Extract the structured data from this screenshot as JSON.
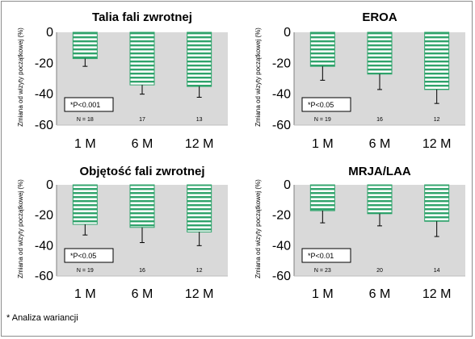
{
  "colors": {
    "plot_bg": "#d9d9d9",
    "bar_stripe": "#2fa36b",
    "bar_fill": "#ffffff",
    "error_bar": "#000000"
  },
  "footnote": "* Analiza wariancji",
  "chart_data": [
    {
      "type": "bar",
      "title": "Talia fali zwrotnej",
      "ylabel": "Zmiana od wizyty początkowej (%)",
      "categories": [
        "1 M",
        "6 M",
        "12 M"
      ],
      "values": [
        -17,
        -34,
        -35
      ],
      "errors": [
        5,
        6,
        7
      ],
      "n_labels": [
        "N = 18",
        "17",
        "13"
      ],
      "ylim": [
        -60,
        0
      ],
      "yticks": [
        0,
        -20,
        -40,
        -60
      ],
      "significance": "*P<0.001",
      "grid": false,
      "legend": "none"
    },
    {
      "type": "bar",
      "title": "EROA",
      "ylabel": "Zmiana od wizyty początkowej (%)",
      "categories": [
        "1 M",
        "6 M",
        "12 M"
      ],
      "values": [
        -22,
        -27,
        -37
      ],
      "errors": [
        9,
        10,
        9
      ],
      "n_labels": [
        "N = 19",
        "16",
        "12"
      ],
      "ylim": [
        -60,
        0
      ],
      "yticks": [
        0,
        -20,
        -40,
        -60
      ],
      "significance": "*P<0.05",
      "grid": false,
      "legend": "none"
    },
    {
      "type": "bar",
      "title": "Objętość fali zwrotnej",
      "ylabel": "Zmiana od wizyty początkowej (%)",
      "categories": [
        "1 M",
        "6 M",
        "12 M"
      ],
      "values": [
        -26,
        -28,
        -31
      ],
      "errors": [
        7,
        10,
        9
      ],
      "n_labels": [
        "N = 19",
        "16",
        "12"
      ],
      "ylim": [
        -60,
        0
      ],
      "yticks": [
        0,
        -20,
        -40,
        -60
      ],
      "significance": "*P<0.05",
      "grid": false,
      "legend": "none"
    },
    {
      "type": "bar",
      "title": "MRJA/LAA",
      "ylabel": "Zmiana od wizyty początkowej (%)",
      "categories": [
        "1 M",
        "6 M",
        "12 M"
      ],
      "values": [
        -17,
        -19,
        -24
      ],
      "errors": [
        8,
        8,
        10
      ],
      "n_labels": [
        "N = 23",
        "20",
        "14"
      ],
      "ylim": [
        -60,
        0
      ],
      "yticks": [
        0,
        -20,
        -40,
        -60
      ],
      "significance": "*P<0.01",
      "grid": false,
      "legend": "none"
    }
  ]
}
